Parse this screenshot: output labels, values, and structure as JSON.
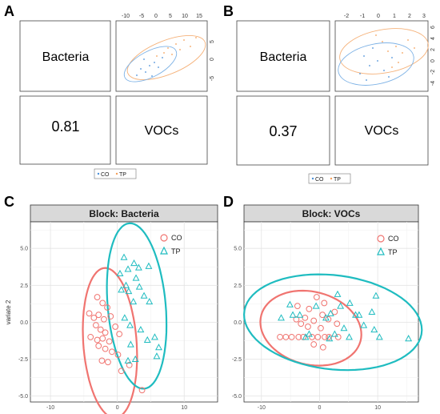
{
  "panels": {
    "A": {
      "letter": "A",
      "block1": "Bacteria",
      "block2": "VOCs",
      "correlation": "0.81",
      "top_ticks": [
        "-10",
        "-5",
        "0",
        "5",
        "10",
        "15"
      ],
      "right_ticks": [
        "5",
        "0",
        "-5"
      ],
      "legend": [
        "CO",
        "TP"
      ]
    },
    "B": {
      "letter": "B",
      "block1": "Bacteria",
      "block2": "VOCs",
      "correlation": "0.37",
      "top_ticks": [
        "-2",
        "-1",
        "0",
        "1",
        "2",
        "3"
      ],
      "right_ticks": [
        "6",
        "4",
        "2",
        "0",
        "-2",
        "-4"
      ],
      "legend": [
        "CO",
        "TP"
      ]
    },
    "C": {
      "letter": "C"
    },
    "D": {
      "letter": "D"
    }
  },
  "colors": {
    "CO": "#f07470",
    "TP": "#1fbcc0",
    "CO_small": "#4a90d9",
    "TP_small": "#f5a05a"
  },
  "chart_data": [
    {
      "type": "scatter",
      "title": "Block: Bacteria",
      "ylabel": "variate 2",
      "xlabel": "",
      "xlim": [
        -13,
        15
      ],
      "ylim": [
        -5.4,
        6.8
      ],
      "xticks": [
        -10,
        0,
        10
      ],
      "yticks": [
        -5.0,
        -2.5,
        0.0,
        2.5,
        5.0
      ],
      "grid": true,
      "legend_position": "top-right",
      "series": [
        {
          "name": "CO",
          "marker": "circle",
          "points": [
            [
              -3.0,
              1.7
            ],
            [
              -2.2,
              1.3
            ],
            [
              -1.5,
              1.0
            ],
            [
              -2.8,
              0.5
            ],
            [
              -3.5,
              0.3
            ],
            [
              -4.2,
              0.6
            ],
            [
              -1.0,
              0.4
            ],
            [
              -2.0,
              0.2
            ],
            [
              -3.2,
              -0.2
            ],
            [
              -2.5,
              -0.5
            ],
            [
              -1.8,
              -0.7
            ],
            [
              -4.0,
              -1.0
            ],
            [
              -3.0,
              -1.2
            ],
            [
              -2.2,
              -1.1
            ],
            [
              -1.2,
              -1.3
            ],
            [
              -0.3,
              -0.3
            ],
            [
              0.3,
              -0.8
            ],
            [
              -2.8,
              -1.6
            ],
            [
              -1.8,
              -1.8
            ],
            [
              -0.8,
              -2.0
            ],
            [
              0.1,
              -2.2
            ],
            [
              -2.3,
              -2.6
            ],
            [
              -1.4,
              -2.7
            ],
            [
              1.8,
              -2.9
            ],
            [
              0.6,
              -3.3
            ],
            [
              3.7,
              -4.6
            ]
          ]
        },
        {
          "name": "TP",
          "marker": "triangle",
          "points": [
            [
              1.0,
              4.4
            ],
            [
              2.5,
              4.0
            ],
            [
              3.2,
              3.7
            ],
            [
              4.7,
              3.8
            ],
            [
              1.6,
              3.6
            ],
            [
              0.4,
              3.3
            ],
            [
              2.8,
              3.0
            ],
            [
              1.3,
              2.5
            ],
            [
              3.3,
              2.4
            ],
            [
              0.6,
              2.2
            ],
            [
              1.7,
              2.1
            ],
            [
              4.0,
              1.8
            ],
            [
              4.8,
              1.4
            ],
            [
              2.4,
              1.4
            ],
            [
              1.1,
              0.3
            ],
            [
              1.9,
              -0.2
            ],
            [
              3.5,
              -0.5
            ],
            [
              5.6,
              -1.0
            ],
            [
              4.5,
              -1.2
            ],
            [
              2.0,
              -1.5
            ],
            [
              6.2,
              -1.7
            ],
            [
              5.9,
              -2.3
            ],
            [
              2.7,
              -2.5
            ],
            [
              1.6,
              -2.6
            ]
          ]
        }
      ],
      "ellipses": [
        {
          "series": "CO",
          "center": [
            -1.1,
            -1.4
          ],
          "rx": 5.2,
          "ry": 3.9,
          "angle": -71
        },
        {
          "series": "TP",
          "center": [
            2.9,
            1.1
          ],
          "rx": 5.8,
          "ry": 4.2,
          "angle": -68
        }
      ]
    },
    {
      "type": "scatter",
      "title": "Block: VOCs",
      "ylabel": "",
      "xlabel": "",
      "xlim": [
        -13,
        17
      ],
      "ylim": [
        -5.4,
        6.8
      ],
      "xticks": [
        -10,
        0,
        10
      ],
      "yticks": [
        -5.0,
        -2.5,
        0.0,
        2.5,
        5.0
      ],
      "grid": true,
      "legend_position": "top-right",
      "series": [
        {
          "name": "CO",
          "marker": "circle",
          "points": [
            [
              -3.8,
              1.1
            ],
            [
              -0.5,
              1.7
            ],
            [
              0.8,
              1.3
            ],
            [
              -1.8,
              0.9
            ],
            [
              2.6,
              0.7
            ],
            [
              0.5,
              0.5
            ],
            [
              -2.5,
              0.3
            ],
            [
              -4.0,
              0.2
            ],
            [
              1.5,
              0.2
            ],
            [
              -1.0,
              0.1
            ],
            [
              -3.2,
              -0.1
            ],
            [
              -2.0,
              -0.3
            ],
            [
              0.2,
              -0.4
            ],
            [
              3.0,
              -0.1
            ],
            [
              -4.8,
              -1.0
            ],
            [
              -6.8,
              -1.0
            ],
            [
              -5.8,
              -1.0
            ],
            [
              -3.6,
              -1.0
            ],
            [
              -2.8,
              -1.0
            ],
            [
              -1.3,
              -1.0
            ],
            [
              -0.3,
              -1.0
            ],
            [
              0.9,
              -1.0
            ],
            [
              1.6,
              -1.0
            ],
            [
              3.2,
              -1.0
            ],
            [
              -1.0,
              -1.5
            ],
            [
              0.6,
              -1.7
            ]
          ]
        },
        {
          "name": "TP",
          "marker": "triangle",
          "points": [
            [
              -5.1,
              1.2
            ],
            [
              -6.6,
              0.3
            ],
            [
              -4.6,
              0.5
            ],
            [
              -3.4,
              0.5
            ],
            [
              -2.4,
              -1.0
            ],
            [
              -1.8,
              -0.8
            ],
            [
              -0.6,
              1.1
            ],
            [
              1.1,
              0.3
            ],
            [
              1.9,
              0.6
            ],
            [
              3.1,
              1.9
            ],
            [
              3.6,
              1.1
            ],
            [
              5.2,
              1.3
            ],
            [
              6.2,
              0.5
            ],
            [
              6.8,
              0.5
            ],
            [
              7.6,
              -0.2
            ],
            [
              4.2,
              -0.4
            ],
            [
              5.1,
              -1.0
            ],
            [
              2.6,
              -0.8
            ],
            [
              9.7,
              1.8
            ],
            [
              9.4,
              -0.5
            ],
            [
              10.3,
              -1.0
            ],
            [
              15.3,
              -1.1
            ],
            [
              9.0,
              0.7
            ],
            [
              1.7,
              -1.1
            ]
          ]
        }
      ],
      "ellipses": [
        {
          "series": "CO",
          "center": [
            -1.5,
            -0.4
          ],
          "rx": 8.7,
          "ry": 2.5,
          "angle": -3
        },
        {
          "series": "TP",
          "center": [
            2.3,
            0.0
          ],
          "rx": 15.3,
          "ry": 3.2,
          "angle": -2
        }
      ]
    }
  ]
}
